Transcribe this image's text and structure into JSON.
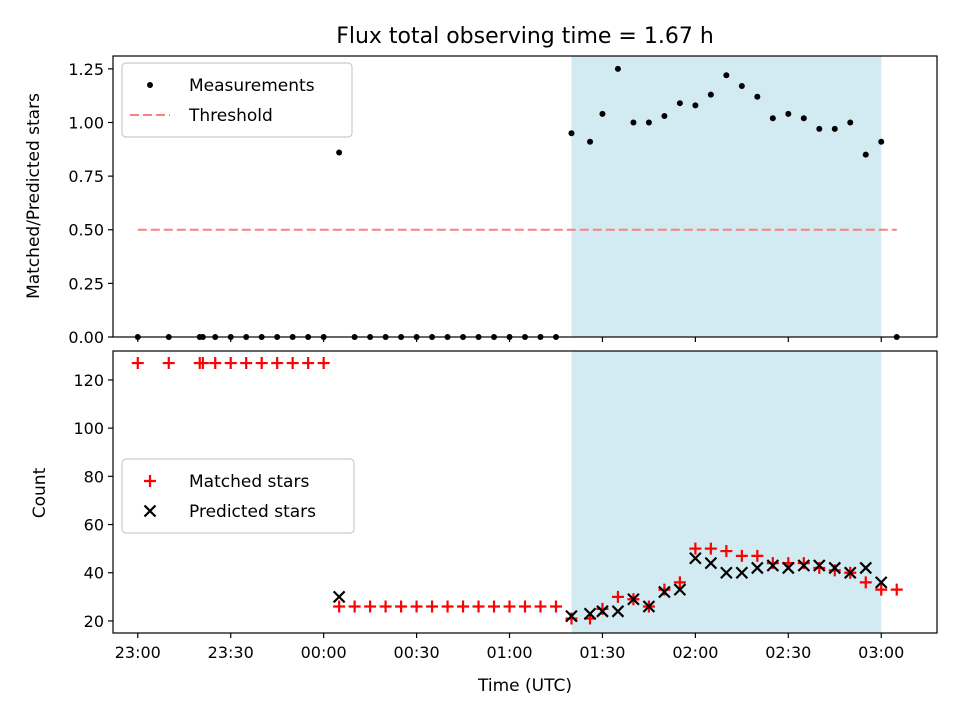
{
  "chart_data": [
    {
      "type": "scatter",
      "title": "Flux total observing time = 1.67 h",
      "xlabel": "",
      "ylabel": "Matched/Predicted stars",
      "xlim": [
        "22:52",
        "03:18"
      ],
      "ylim": [
        0,
        1.31
      ],
      "yticks": [
        "0.00",
        "0.25",
        "0.50",
        "0.75",
        "1.00",
        "1.25"
      ],
      "shaded_region": [
        "01:20",
        "03:00"
      ],
      "shade_color": "#add8e6",
      "legend_position": "upper left",
      "series": [
        {
          "name": "Measurements",
          "marker": "dot",
          "color": "#000000",
          "points": [
            [
              "23:00",
              0
            ],
            [
              "23:10",
              0
            ],
            [
              "23:20",
              0
            ],
            [
              "23:21",
              0
            ],
            [
              "23:25",
              0
            ],
            [
              "23:30",
              0
            ],
            [
              "23:35",
              0
            ],
            [
              "23:40",
              0
            ],
            [
              "23:45",
              0
            ],
            [
              "23:50",
              0
            ],
            [
              "23:55",
              0
            ],
            [
              "00:00",
              0
            ],
            [
              "00:05",
              0.86
            ],
            [
              "00:10",
              0
            ],
            [
              "00:15",
              0
            ],
            [
              "00:20",
              0
            ],
            [
              "00:25",
              0
            ],
            [
              "00:30",
              0
            ],
            [
              "00:35",
              0
            ],
            [
              "00:40",
              0
            ],
            [
              "00:45",
              0
            ],
            [
              "00:50",
              0
            ],
            [
              "00:55",
              0
            ],
            [
              "01:00",
              0
            ],
            [
              "01:05",
              0
            ],
            [
              "01:10",
              0
            ],
            [
              "01:15",
              0
            ],
            [
              "01:20",
              0.95
            ],
            [
              "01:26",
              0.91
            ],
            [
              "01:30",
              1.04
            ],
            [
              "01:35",
              1.25
            ],
            [
              "01:40",
              1.0
            ],
            [
              "01:45",
              1.0
            ],
            [
              "01:50",
              1.03
            ],
            [
              "01:55",
              1.09
            ],
            [
              "02:00",
              1.08
            ],
            [
              "02:05",
              1.13
            ],
            [
              "02:10",
              1.22
            ],
            [
              "02:15",
              1.17
            ],
            [
              "02:20",
              1.12
            ],
            [
              "02:25",
              1.02
            ],
            [
              "02:30",
              1.04
            ],
            [
              "02:35",
              1.02
            ],
            [
              "02:40",
              0.97
            ],
            [
              "02:45",
              0.97
            ],
            [
              "02:50",
              1.0
            ],
            [
              "02:55",
              0.85
            ],
            [
              "03:00",
              0.91
            ],
            [
              "03:05",
              0
            ]
          ]
        },
        {
          "name": "Threshold",
          "marker": "dashed-line",
          "color": "#ff7f7f",
          "points": [
            [
              "23:00",
              0.5
            ],
            [
              "03:05",
              0.5
            ]
          ]
        }
      ]
    },
    {
      "type": "scatter",
      "xlabel": "Time (UTC)",
      "ylabel": "Count",
      "xlim": [
        "22:52",
        "03:18"
      ],
      "ylim": [
        15,
        132
      ],
      "yticks": [
        "20",
        "40",
        "60",
        "80",
        "100",
        "120"
      ],
      "xticks": [
        "23:00",
        "23:30",
        "00:00",
        "00:30",
        "01:00",
        "01:30",
        "02:00",
        "02:30",
        "03:00"
      ],
      "shaded_region": [
        "01:20",
        "03:00"
      ],
      "shade_color": "#add8e6",
      "legend_position": "center left",
      "series": [
        {
          "name": "Matched stars",
          "marker": "plus",
          "color": "#ff0000",
          "points": [
            [
              "23:00",
              127
            ],
            [
              "23:10",
              127
            ],
            [
              "23:20",
              127
            ],
            [
              "23:21",
              127
            ],
            [
              "23:25",
              127
            ],
            [
              "23:30",
              127
            ],
            [
              "23:35",
              127
            ],
            [
              "23:40",
              127
            ],
            [
              "23:45",
              127
            ],
            [
              "23:50",
              127
            ],
            [
              "23:55",
              127
            ],
            [
              "00:00",
              127
            ],
            [
              "00:05",
              26
            ],
            [
              "00:10",
              26
            ],
            [
              "00:15",
              26
            ],
            [
              "00:20",
              26
            ],
            [
              "00:25",
              26
            ],
            [
              "00:30",
              26
            ],
            [
              "00:35",
              26
            ],
            [
              "00:40",
              26
            ],
            [
              "00:45",
              26
            ],
            [
              "00:50",
              26
            ],
            [
              "00:55",
              26
            ],
            [
              "01:00",
              26
            ],
            [
              "01:05",
              26
            ],
            [
              "01:10",
              26
            ],
            [
              "01:15",
              26
            ],
            [
              "01:20",
              21
            ],
            [
              "01:26",
              21
            ],
            [
              "01:30",
              25
            ],
            [
              "01:35",
              30
            ],
            [
              "01:40",
              29
            ],
            [
              "01:45",
              26
            ],
            [
              "01:50",
              33
            ],
            [
              "01:55",
              36
            ],
            [
              "02:00",
              50
            ],
            [
              "02:05",
              50
            ],
            [
              "02:10",
              49
            ],
            [
              "02:15",
              47
            ],
            [
              "02:20",
              47
            ],
            [
              "02:25",
              44
            ],
            [
              "02:30",
              44
            ],
            [
              "02:35",
              44
            ],
            [
              "02:40",
              42
            ],
            [
              "02:45",
              41
            ],
            [
              "02:50",
              40
            ],
            [
              "02:55",
              36
            ],
            [
              "03:00",
              33
            ],
            [
              "03:05",
              33
            ]
          ]
        },
        {
          "name": "Predicted stars",
          "marker": "x",
          "color": "#000000",
          "points": [
            [
              "00:05",
              30
            ],
            [
              "01:20",
              22
            ],
            [
              "01:26",
              23
            ],
            [
              "01:30",
              24
            ],
            [
              "01:35",
              24
            ],
            [
              "01:40",
              29
            ],
            [
              "01:45",
              26
            ],
            [
              "01:50",
              32
            ],
            [
              "01:55",
              33
            ],
            [
              "02:00",
              46
            ],
            [
              "02:05",
              44
            ],
            [
              "02:10",
              40
            ],
            [
              "02:15",
              40
            ],
            [
              "02:20",
              42
            ],
            [
              "02:25",
              43
            ],
            [
              "02:30",
              42
            ],
            [
              "02:35",
              43
            ],
            [
              "02:40",
              43
            ],
            [
              "02:45",
              42
            ],
            [
              "02:50",
              40
            ],
            [
              "02:55",
              42
            ],
            [
              "03:00",
              36
            ]
          ]
        }
      ]
    }
  ]
}
